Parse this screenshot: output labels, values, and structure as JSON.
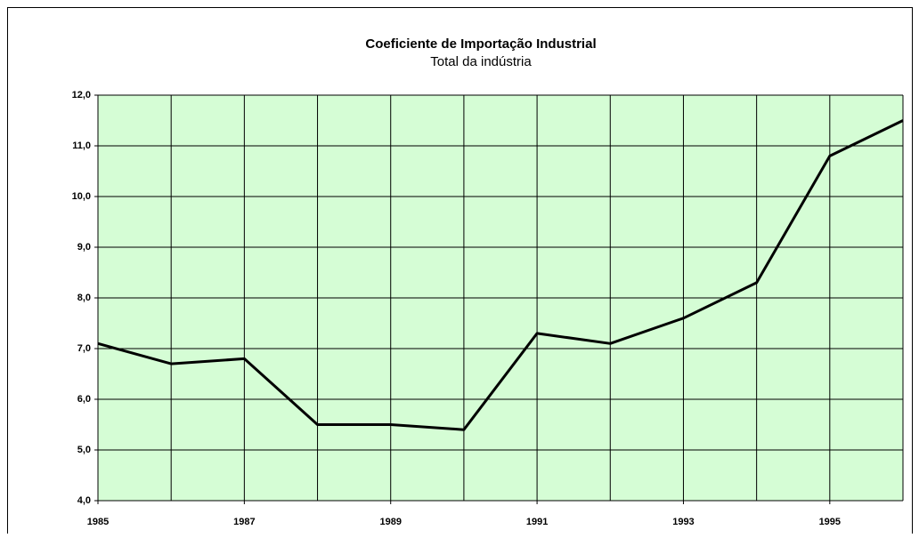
{
  "chart_data": {
    "type": "line",
    "title": "Coeficiente de Importação Industrial",
    "subtitle": "Total da indústria",
    "x": [
      1985,
      1986,
      1987,
      1988,
      1989,
      1990,
      1991,
      1992,
      1993,
      1994,
      1995,
      1996
    ],
    "series": [
      {
        "color": "#000000",
        "values": [
          7.1,
          6.7,
          6.8,
          5.5,
          5.5,
          5.4,
          7.3,
          7.1,
          7.6,
          8.3,
          10.8,
          11.5
        ]
      }
    ],
    "xlim": [
      1985,
      1996
    ],
    "xticks": [
      1985,
      1987,
      1989,
      1991,
      1993,
      1995
    ],
    "xgrid": [
      1985,
      1986,
      1987,
      1988,
      1989,
      1990,
      1991,
      1992,
      1993,
      1994,
      1995,
      1996
    ],
    "ylim": [
      4,
      12
    ],
    "yticks": [
      {
        "value": 4,
        "label": "4,0"
      },
      {
        "value": 5,
        "label": "5,0"
      },
      {
        "value": 6,
        "label": "6,0"
      },
      {
        "value": 7,
        "label": "7,0"
      },
      {
        "value": 8,
        "label": "8,0"
      },
      {
        "value": 9,
        "label": "9,0"
      },
      {
        "value": 10,
        "label": "10,0"
      },
      {
        "value": 11,
        "label": "11,0"
      },
      {
        "value": 12,
        "label": "12,0"
      }
    ],
    "grid": true,
    "plot_background": "#d5fdd5"
  }
}
